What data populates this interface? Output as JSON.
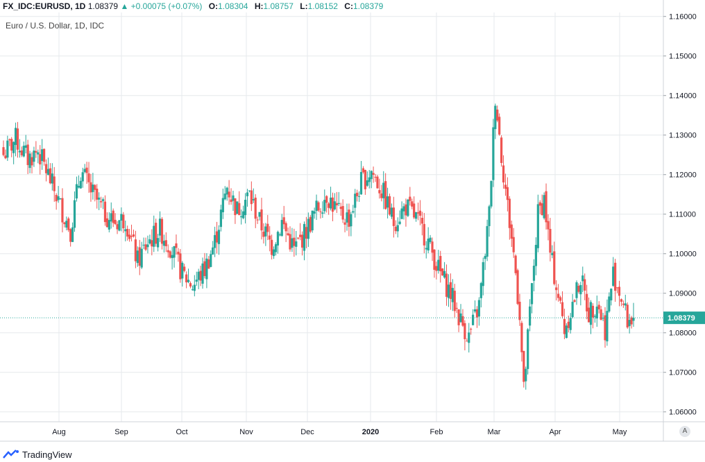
{
  "header": {
    "symbol": "FX_IDC:EURUSD, 1D",
    "last": "1.08379",
    "change": "+0.00075 (+0.07%)",
    "o_label": "O:",
    "o_val": "1.08304",
    "h_label": "H:",
    "h_val": "1.08757",
    "l_label": "L:",
    "l_val": "1.08152",
    "c_label": "C:",
    "c_val": "1.08379"
  },
  "subtitle": "Euro / U.S. Dollar, 1D, IDC",
  "brand": "TradingView",
  "auto_label": "A",
  "price_badge": "1.08379",
  "colors": {
    "up": "#26a69a",
    "down": "#ef5350",
    "grid": "#e6e9ec"
  },
  "chart_data": {
    "type": "candlestick",
    "y_ticks": [
      "1.16000",
      "1.15000",
      "1.14000",
      "1.13000",
      "1.12000",
      "1.11000",
      "1.10000",
      "1.09000",
      "1.08000",
      "1.07000",
      "1.06000"
    ],
    "ylim": [
      1.0575,
      1.161
    ],
    "x_ticks": [
      "Aug",
      "Sep",
      "Oct",
      "Nov",
      "Dec",
      "2020",
      "Feb",
      "Mar",
      "Apr",
      "May"
    ],
    "series_close_points": [
      [
        0,
        1.125
      ],
      [
        6,
        1.129
      ],
      [
        12,
        1.124
      ],
      [
        17,
        1.126
      ],
      [
        22,
        1.12
      ],
      [
        28,
        1.112
      ],
      [
        33,
        1.106
      ],
      [
        38,
        1.121
      ],
      [
        44,
        1.115
      ],
      [
        50,
        1.11
      ],
      [
        55,
        1.108
      ],
      [
        60,
        1.109
      ],
      [
        66,
        1.098
      ],
      [
        71,
        1.103
      ],
      [
        77,
        1.106
      ],
      [
        82,
        1.102
      ],
      [
        88,
        1.095
      ],
      [
        93,
        1.092
      ],
      [
        99,
        1.096
      ],
      [
        104,
        1.103
      ],
      [
        110,
        1.117
      ],
      [
        115,
        1.111
      ],
      [
        121,
        1.115
      ],
      [
        126,
        1.108
      ],
      [
        132,
        1.102
      ],
      [
        137,
        1.108
      ],
      [
        143,
        1.101
      ],
      [
        148,
        1.105
      ],
      [
        154,
        1.111
      ],
      [
        159,
        1.115
      ],
      [
        165,
        1.11
      ],
      [
        170,
        1.109
      ],
      [
        176,
        1.118
      ],
      [
        181,
        1.121
      ],
      [
        187,
        1.115
      ],
      [
        192,
        1.108
      ],
      [
        198,
        1.112
      ],
      [
        203,
        1.109
      ],
      [
        209,
        1.103
      ],
      [
        214,
        1.096
      ],
      [
        220,
        1.09
      ],
      [
        225,
        1.083
      ],
      [
        229,
        1.079
      ],
      [
        234,
        1.087
      ],
      [
        239,
        1.11
      ],
      [
        242,
        1.14
      ],
      [
        245,
        1.125
      ],
      [
        248,
        1.112
      ],
      [
        251,
        1.1
      ],
      [
        254,
        1.085
      ],
      [
        256,
        1.065
      ],
      [
        259,
        1.085
      ],
      [
        263,
        1.11
      ],
      [
        266,
        1.114
      ],
      [
        269,
        1.1
      ],
      [
        272,
        1.092
      ],
      [
        276,
        1.081
      ],
      [
        280,
        1.087
      ],
      [
        284,
        1.094
      ],
      [
        288,
        1.085
      ],
      [
        292,
        1.088
      ],
      [
        296,
        1.081
      ],
      [
        300,
        1.095
      ],
      [
        304,
        1.089
      ],
      [
        307,
        1.083
      ],
      [
        310,
        1.084
      ]
    ]
  }
}
